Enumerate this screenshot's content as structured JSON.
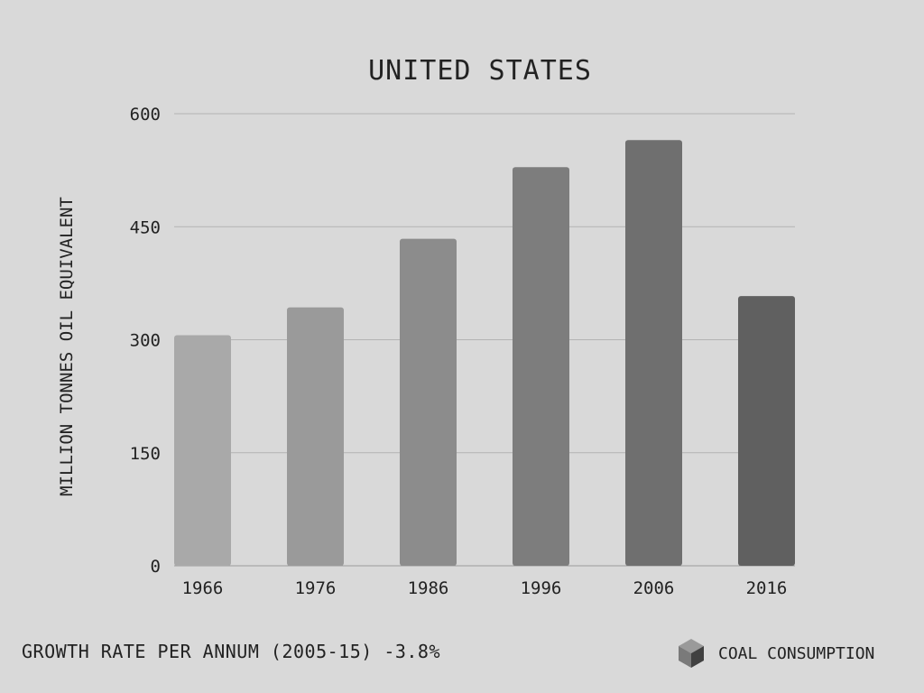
{
  "chart_data": {
    "type": "bar",
    "title": "UNITED STATES",
    "ylabel": "MILLION TONNES OIL EQUIVALENT",
    "xlabel": "",
    "categories": [
      "1966",
      "1976",
      "1986",
      "1996",
      "2006",
      "2016"
    ],
    "series": [
      {
        "name": "COAL CONSUMPTION",
        "values": [
          306,
          343,
          434,
          529,
          565,
          358
        ]
      }
    ],
    "ylim": [
      0,
      600
    ],
    "yticks": [
      "0",
      "150",
      "300",
      "450",
      "600"
    ],
    "grid": true,
    "legend_position": "bottom-right",
    "bar_colors": [
      "#a9a9a9",
      "#9a9a9a",
      "#8c8c8c",
      "#7d7d7d",
      "#6f6f6f",
      "#606060"
    ]
  },
  "footer": {
    "note": "GROWTH RATE PER ANNUM (2005-15) -3.8%",
    "legend_label": "COAL CONSUMPTION",
    "legend_icon": "cube-icon"
  }
}
